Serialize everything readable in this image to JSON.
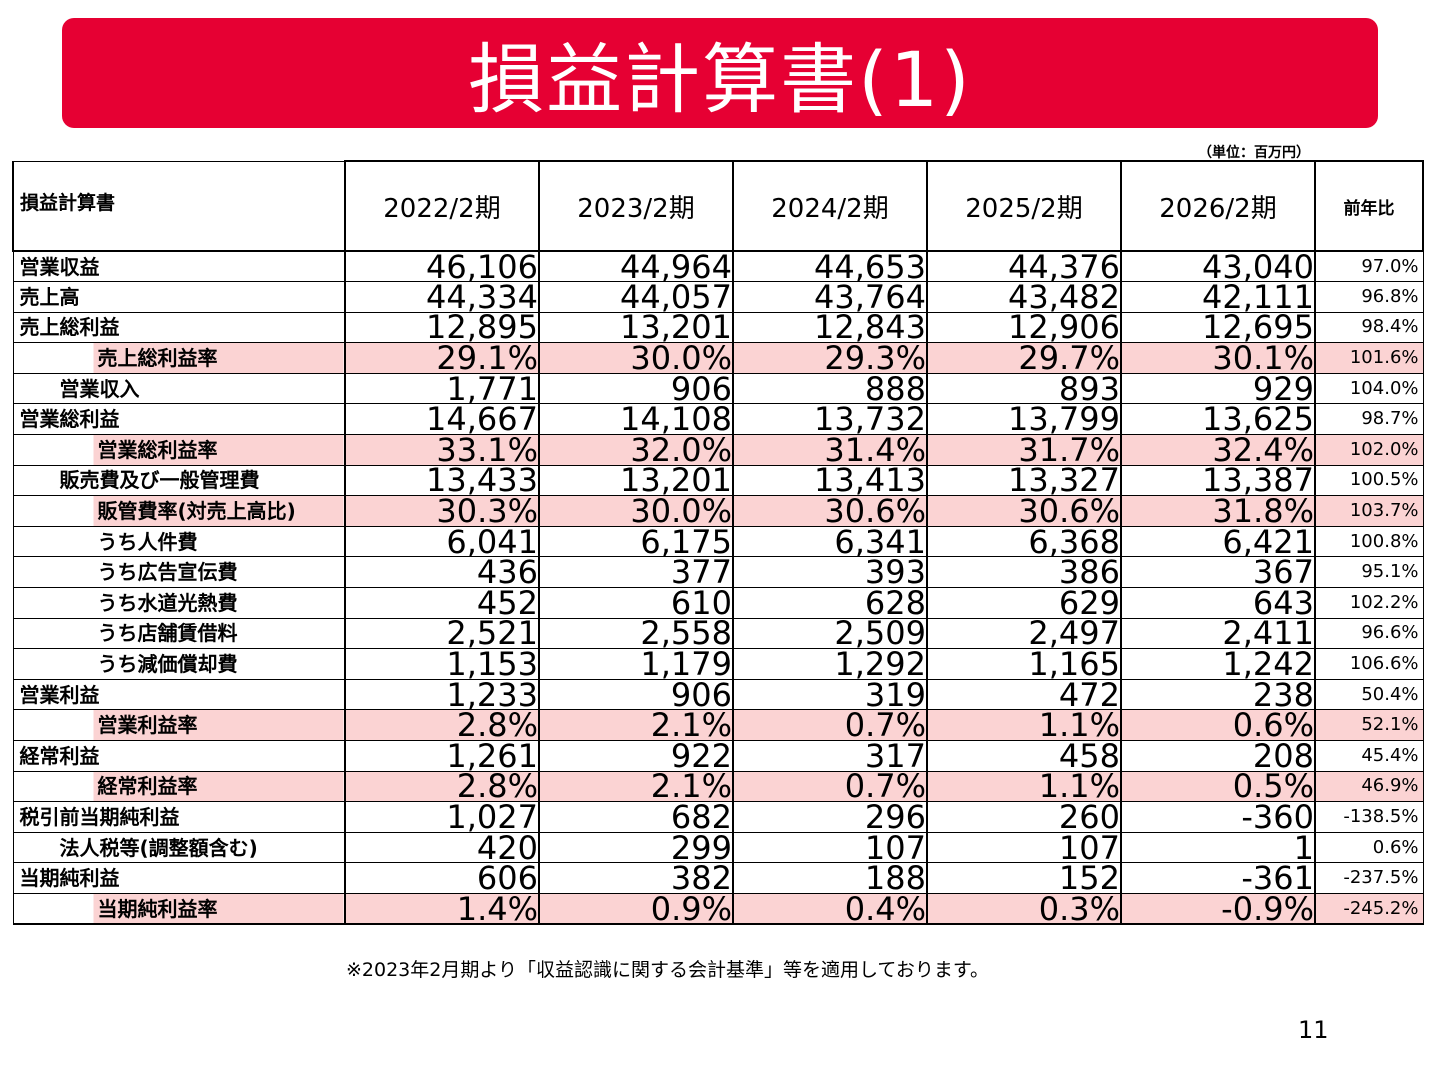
{
  "title": "損益計算書(1)",
  "unit": "（単位：百万円）",
  "table": {
    "header": {
      "label": "損益計算書",
      "years": [
        "2022/2期",
        "2023/2期",
        "2024/2期",
        "2025/2期",
        "2026/2期"
      ],
      "ratio": "前年比"
    },
    "rows": [
      {
        "label": "営業収益",
        "level": 0,
        "highlight": false,
        "values": [
          "46,106",
          "44,964",
          "44,653",
          "44,376",
          "43,040"
        ],
        "ratio": "97.0%"
      },
      {
        "label": "売上高",
        "level": 0,
        "highlight": false,
        "values": [
          "44,334",
          "44,057",
          "43,764",
          "43,482",
          "42,111"
        ],
        "ratio": "96.8%"
      },
      {
        "label": "売上総利益",
        "level": 0,
        "highlight": false,
        "values": [
          "12,895",
          "13,201",
          "12,843",
          "12,906",
          "12,695"
        ],
        "ratio": "98.4%"
      },
      {
        "label": "売上総利益率",
        "level": 2,
        "highlight": true,
        "values": [
          "29.1%",
          "30.0%",
          "29.3%",
          "29.7%",
          "30.1%"
        ],
        "ratio": "101.6%"
      },
      {
        "label": "営業収入",
        "level": 1,
        "highlight": false,
        "values": [
          "1,771",
          "906",
          "888",
          "893",
          "929"
        ],
        "ratio": "104.0%"
      },
      {
        "label": "営業総利益",
        "level": 0,
        "highlight": false,
        "values": [
          "14,667",
          "14,108",
          "13,732",
          "13,799",
          "13,625"
        ],
        "ratio": "98.7%"
      },
      {
        "label": "営業総利益率",
        "level": 2,
        "highlight": true,
        "values": [
          "33.1%",
          "32.0%",
          "31.4%",
          "31.7%",
          "32.4%"
        ],
        "ratio": "102.0%"
      },
      {
        "label": "販売費及び一般管理費",
        "level": 1,
        "highlight": false,
        "values": [
          "13,433",
          "13,201",
          "13,413",
          "13,327",
          "13,387"
        ],
        "ratio": "100.5%"
      },
      {
        "label": "販管費率(対売上高比)",
        "level": 2,
        "highlight": true,
        "values": [
          "30.3%",
          "30.0%",
          "30.6%",
          "30.6%",
          "31.8%"
        ],
        "ratio": "103.7%"
      },
      {
        "label": "うち人件費",
        "level": 2,
        "highlight": false,
        "values": [
          "6,041",
          "6,175",
          "6,341",
          "6,368",
          "6,421"
        ],
        "ratio": "100.8%"
      },
      {
        "label": "うち広告宣伝費",
        "level": 2,
        "highlight": false,
        "values": [
          "436",
          "377",
          "393",
          "386",
          "367"
        ],
        "ratio": "95.1%"
      },
      {
        "label": "うち水道光熱費",
        "level": 2,
        "highlight": false,
        "values": [
          "452",
          "610",
          "628",
          "629",
          "643"
        ],
        "ratio": "102.2%"
      },
      {
        "label": "うち店舗賃借料",
        "level": 2,
        "highlight": false,
        "values": [
          "2,521",
          "2,558",
          "2,509",
          "2,497",
          "2,411"
        ],
        "ratio": "96.6%"
      },
      {
        "label": "うち減価償却費",
        "level": 2,
        "highlight": false,
        "values": [
          "1,153",
          "1,179",
          "1,292",
          "1,165",
          "1,242"
        ],
        "ratio": "106.6%"
      },
      {
        "label": "営業利益",
        "level": 0,
        "highlight": false,
        "values": [
          "1,233",
          "906",
          "319",
          "472",
          "238"
        ],
        "ratio": "50.4%"
      },
      {
        "label": "営業利益率",
        "level": 2,
        "highlight": true,
        "values": [
          "2.8%",
          "2.1%",
          "0.7%",
          "1.1%",
          "0.6%"
        ],
        "ratio": "52.1%"
      },
      {
        "label": "経常利益",
        "level": 0,
        "highlight": false,
        "values": [
          "1,261",
          "922",
          "317",
          "458",
          "208"
        ],
        "ratio": "45.4%"
      },
      {
        "label": "経常利益率",
        "level": 2,
        "highlight": true,
        "values": [
          "2.8%",
          "2.1%",
          "0.7%",
          "1.1%",
          "0.5%"
        ],
        "ratio": "46.9%"
      },
      {
        "label": "税引前当期純利益",
        "level": 0,
        "highlight": false,
        "values": [
          "1,027",
          "682",
          "296",
          "260",
          "-360"
        ],
        "ratio": "-138.5%"
      },
      {
        "label": "法人税等(調整額含む)",
        "level": 1,
        "highlight": false,
        "values": [
          "420",
          "299",
          "107",
          "107",
          "1"
        ],
        "ratio": "0.6%"
      },
      {
        "label": "当期純利益",
        "level": 0,
        "highlight": false,
        "values": [
          "606",
          "382",
          "188",
          "152",
          "-361"
        ],
        "ratio": "-237.5%"
      },
      {
        "label": "当期純利益率",
        "level": 2,
        "highlight": true,
        "values": [
          "1.4%",
          "0.9%",
          "0.4%",
          "0.3%",
          "-0.9%"
        ],
        "ratio": "-245.2%"
      }
    ]
  },
  "footnote": "※2023年2月期より「収益認識に関する会計基準」等を適用しております。",
  "page_number": "11",
  "colors": {
    "title_bar": "#e60033",
    "highlight_row": "#fbd3d3"
  }
}
